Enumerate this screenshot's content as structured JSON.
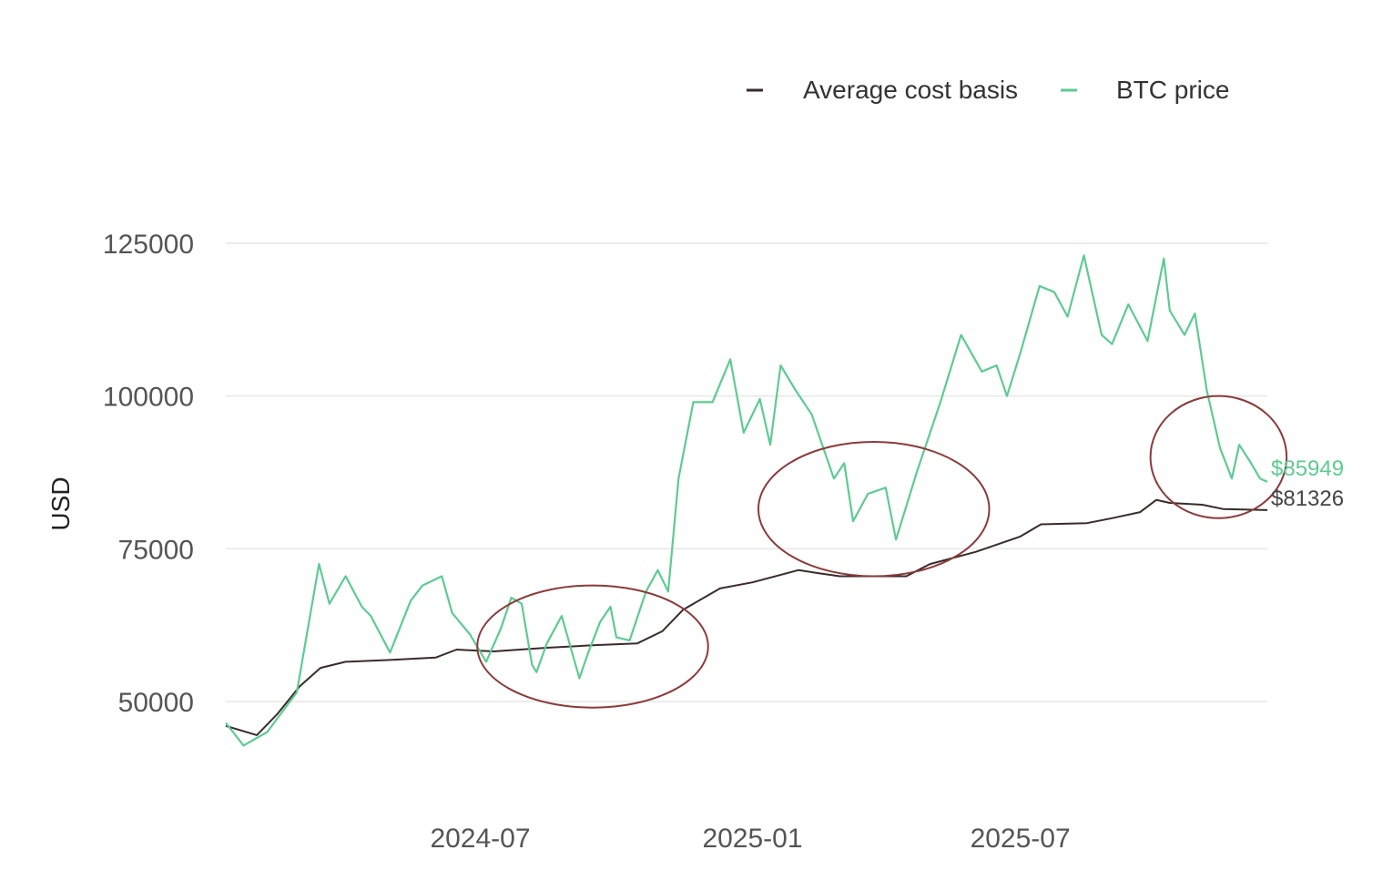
{
  "chart_data": {
    "type": "line",
    "title": "",
    "xlabel": "",
    "ylabel": "USD",
    "ylim": [
      35000,
      135000
    ],
    "grid": true,
    "legend_position": "top-right",
    "y_ticks": [
      {
        "value": 50000,
        "label": "50000"
      },
      {
        "value": 75000,
        "label": "75000"
      },
      {
        "value": 100000,
        "label": "100000"
      },
      {
        "value": 125000,
        "label": "125000"
      }
    ],
    "x_ticks": [
      {
        "date": "2024-07-01",
        "label": "2024-07"
      },
      {
        "date": "2025-01-01",
        "label": "2025-01"
      },
      {
        "date": "2025-07-01",
        "label": "2025-07"
      }
    ],
    "x_range": [
      "2024-01-11",
      "2025-12-15"
    ],
    "legend": [
      "Average cost basis",
      "BTC price"
    ],
    "colors": {
      "cost_basis": "#3b2a2a",
      "btc_price": "#5dcb91",
      "circle": "#8b3a3a",
      "grid": "#e6e6e6"
    },
    "end_labels": {
      "btc_price": "$85949",
      "cost_basis": "$81326"
    },
    "highlight_circles": [
      {
        "center_date": "2024-09-15",
        "center_value": 59000,
        "radius_days": 78,
        "radius_value": 10000
      },
      {
        "center_date": "2025-03-24",
        "center_value": 81500,
        "radius_days": 78,
        "radius_value": 11000
      },
      {
        "center_date": "2025-11-12",
        "center_value": 90000,
        "radius_days": 46,
        "radius_value": 10000
      }
    ],
    "series": [
      {
        "name": "BTC price",
        "dates": [
          "2024-01-11",
          "2024-01-23",
          "2024-02-08",
          "2024-02-28",
          "2024-03-14",
          "2024-03-21",
          "2024-04-01",
          "2024-04-12",
          "2024-04-18",
          "2024-05-01",
          "2024-05-15",
          "2024-05-23",
          "2024-06-05",
          "2024-06-12",
          "2024-06-24",
          "2024-07-05",
          "2024-07-15",
          "2024-07-22",
          "2024-07-29",
          "2024-08-05",
          "2024-08-08",
          "2024-08-15",
          "2024-08-25",
          "2024-09-06",
          "2024-09-12",
          "2024-09-20",
          "2024-09-27",
          "2024-10-01",
          "2024-10-10",
          "2024-10-21",
          "2024-10-29",
          "2024-11-05",
          "2024-11-12",
          "2024-11-22",
          "2024-12-05",
          "2024-12-17",
          "2024-12-26",
          "2025-01-06",
          "2025-01-13",
          "2025-01-20",
          "2025-01-30",
          "2025-02-10",
          "2025-02-25",
          "2025-03-04",
          "2025-03-10",
          "2025-03-20",
          "2025-04-01",
          "2025-04-08",
          "2025-04-22",
          "2025-05-08",
          "2025-05-22",
          "2025-06-05",
          "2025-06-15",
          "2025-06-22",
          "2025-07-01",
          "2025-07-14",
          "2025-07-24",
          "2025-08-02",
          "2025-08-13",
          "2025-08-25",
          "2025-09-01",
          "2025-09-12",
          "2025-09-25",
          "2025-10-06",
          "2025-10-10",
          "2025-10-20",
          "2025-10-27",
          "2025-11-04",
          "2025-11-13",
          "2025-11-21",
          "2025-11-26",
          "2025-12-04",
          "2025-12-10",
          "2025-12-15"
        ],
        "values": [
          46500,
          42800,
          45000,
          51500,
          72500,
          66000,
          70500,
          65500,
          64000,
          58000,
          66500,
          69000,
          70500,
          64500,
          61000,
          56500,
          62000,
          67000,
          66000,
          56000,
          54800,
          59500,
          64000,
          53800,
          58000,
          63000,
          65500,
          60500,
          60000,
          68000,
          71500,
          68000,
          86500,
          99000,
          99000,
          106000,
          94000,
          99500,
          92000,
          105000,
          101000,
          97000,
          86500,
          89000,
          79500,
          84000,
          85000,
          76500,
          87500,
          99000,
          110000,
          104000,
          105000,
          100000,
          107000,
          118000,
          117000,
          113000,
          123000,
          110000,
          108500,
          115000,
          109000,
          122500,
          114000,
          110000,
          113500,
          101000,
          91500,
          86500,
          92000,
          89000,
          86500,
          85949
        ]
      },
      {
        "name": "Average cost basis",
        "dates": [
          "2024-01-11",
          "2024-02-01",
          "2024-02-15",
          "2024-03-01",
          "2024-03-15",
          "2024-04-01",
          "2024-05-01",
          "2024-06-01",
          "2024-06-15",
          "2024-07-10",
          "2024-08-15",
          "2024-09-15",
          "2024-10-15",
          "2024-11-01",
          "2024-11-15",
          "2024-12-10",
          "2025-01-01",
          "2025-02-01",
          "2025-02-15",
          "2025-03-01",
          "2025-04-15",
          "2025-05-01",
          "2025-06-01",
          "2025-07-01",
          "2025-07-15",
          "2025-08-15",
          "2025-09-01",
          "2025-09-20",
          "2025-10-01",
          "2025-10-10",
          "2025-11-01",
          "2025-11-15",
          "2025-12-15"
        ],
        "values": [
          46000,
          44500,
          48000,
          52500,
          55500,
          56500,
          56800,
          57200,
          58500,
          58200,
          58800,
          59200,
          59500,
          61500,
          65000,
          68500,
          69500,
          71500,
          71000,
          70500,
          70500,
          72500,
          74500,
          77000,
          79000,
          79200,
          80000,
          81000,
          83000,
          82500,
          82200,
          81500,
          81326
        ]
      }
    ]
  }
}
